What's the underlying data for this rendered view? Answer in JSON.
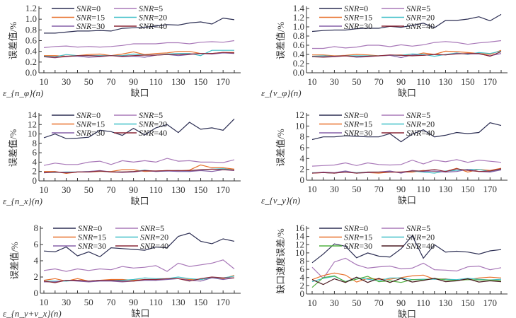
{
  "chart_data": [
    {
      "type": "line",
      "xlabel": "缺口",
      "ylabel": "误差值/%",
      "corner_label": "ε_{n_φ}(n)",
      "ylim": [
        0,
        1.2
      ],
      "yticks": [
        0,
        0.2,
        0.4,
        0.6,
        0.8,
        1.0,
        1.2
      ],
      "yticks_decimals": 1,
      "x": [
        10,
        20,
        30,
        40,
        50,
        60,
        70,
        80,
        90,
        100,
        110,
        120,
        130,
        140,
        150,
        160,
        170,
        180
      ],
      "xticks": [
        10,
        30,
        50,
        70,
        90,
        110,
        130,
        150,
        170
      ],
      "series": [
        {
          "name": "SNR=0",
          "color": "#2b2d52",
          "values": [
            0.74,
            0.74,
            0.76,
            0.78,
            0.78,
            0.79,
            0.78,
            0.83,
            0.84,
            0.85,
            0.87,
            0.9,
            0.89,
            0.93,
            0.95,
            0.91,
            1.02,
            0.99
          ]
        },
        {
          "name": "SNR=5",
          "color": "#a878b8",
          "values": [
            0.47,
            0.49,
            0.5,
            0.48,
            0.49,
            0.48,
            0.49,
            0.51,
            0.54,
            0.54,
            0.54,
            0.56,
            0.56,
            0.54,
            0.57,
            0.58,
            0.57,
            0.6
          ]
        },
        {
          "name": "SNR=15",
          "color": "#e8702a",
          "values": [
            0.32,
            0.32,
            0.31,
            0.32,
            0.34,
            0.35,
            0.32,
            0.35,
            0.39,
            0.34,
            0.36,
            0.37,
            0.4,
            0.4,
            0.36,
            0.36,
            0.38,
            0.38
          ]
        },
        {
          "name": "SNR=20",
          "color": "#40c0c8",
          "values": [
            0.31,
            0.3,
            0.34,
            0.32,
            0.32,
            0.32,
            0.32,
            0.32,
            0.35,
            0.33,
            0.33,
            0.35,
            0.36,
            0.36,
            0.32,
            0.42,
            0.42,
            0.42
          ]
        },
        {
          "name": "SNR=30",
          "color": "#8560a8",
          "values": [
            0.3,
            0.28,
            0.31,
            0.31,
            0.29,
            0.3,
            0.32,
            0.3,
            0.31,
            0.29,
            0.33,
            0.34,
            0.32,
            0.34,
            0.36,
            0.35,
            0.37,
            0.36
          ]
        },
        {
          "name": "SNR=40",
          "color": "#8a2838",
          "values": [
            0.3,
            0.29,
            0.3,
            0.32,
            0.32,
            0.31,
            0.32,
            0.31,
            0.32,
            0.33,
            0.33,
            0.34,
            0.34,
            0.35,
            0.36,
            0.36,
            0.38,
            0.37
          ]
        }
      ]
    },
    {
      "type": "line",
      "xlabel": "缺口",
      "ylabel": "误差值/%",
      "corner_label": "ε_{v_φ}(n)",
      "ylim": [
        0,
        1.4
      ],
      "yticks": [
        0,
        0.2,
        0.4,
        0.6,
        0.8,
        1.0,
        1.2,
        1.4
      ],
      "yticks_decimals": 1,
      "x": [
        10,
        20,
        30,
        40,
        50,
        60,
        70,
        80,
        90,
        100,
        110,
        120,
        130,
        140,
        150,
        160,
        170,
        180
      ],
      "xticks": [
        10,
        30,
        50,
        70,
        90,
        110,
        130,
        150,
        170
      ],
      "series": [
        {
          "name": "SNR=0",
          "color": "#2b2d52",
          "values": [
            0.9,
            0.92,
            0.93,
            0.93,
            0.96,
            0.97,
            0.97,
            1.01,
            0.99,
            1.03,
            1.08,
            0.98,
            1.14,
            1.14,
            1.17,
            1.22,
            1.13,
            1.27
          ]
        },
        {
          "name": "SNR=5",
          "color": "#a878b8",
          "values": [
            0.53,
            0.53,
            0.57,
            0.54,
            0.56,
            0.6,
            0.6,
            0.57,
            0.61,
            0.58,
            0.61,
            0.66,
            0.68,
            0.66,
            0.62,
            0.65,
            0.67,
            0.7
          ]
        },
        {
          "name": "SNR=15",
          "color": "#e8702a",
          "values": [
            0.39,
            0.39,
            0.37,
            0.38,
            0.4,
            0.39,
            0.37,
            0.38,
            0.39,
            0.38,
            0.43,
            0.4,
            0.47,
            0.46,
            0.44,
            0.42,
            0.4,
            0.49
          ]
        },
        {
          "name": "SNR=20",
          "color": "#40c0c8",
          "values": [
            0.36,
            0.37,
            0.36,
            0.37,
            0.37,
            0.37,
            0.37,
            0.38,
            0.38,
            0.41,
            0.4,
            0.36,
            0.4,
            0.43,
            0.4,
            0.44,
            0.42,
            0.47
          ]
        },
        {
          "name": "SNR=30",
          "color": "#8560a8",
          "values": [
            0.35,
            0.35,
            0.36,
            0.37,
            0.34,
            0.35,
            0.37,
            0.38,
            0.33,
            0.39,
            0.38,
            0.4,
            0.39,
            0.42,
            0.41,
            0.41,
            0.37,
            0.42
          ]
        },
        {
          "name": "SNR=40",
          "color": "#8a2838",
          "values": [
            0.35,
            0.34,
            0.35,
            0.37,
            0.35,
            0.36,
            0.37,
            0.39,
            0.38,
            0.37,
            0.38,
            0.4,
            0.39,
            0.41,
            0.42,
            0.42,
            0.36,
            0.46
          ]
        }
      ]
    },
    {
      "type": "line",
      "xlabel": "缺口",
      "ylabel": "误差值/%",
      "corner_label": "ε_{n_x}(n)",
      "ylim": [
        0,
        14
      ],
      "yticks": [
        0,
        2,
        4,
        6,
        8,
        10,
        12,
        14
      ],
      "yticks_decimals": 0,
      "x": [
        10,
        20,
        30,
        40,
        50,
        60,
        70,
        80,
        90,
        100,
        110,
        120,
        130,
        140,
        150,
        160,
        170,
        180
      ],
      "xticks": [
        10,
        30,
        50,
        70,
        90,
        110,
        130,
        150,
        170
      ],
      "series": [
        {
          "name": "SNR=0",
          "color": "#2b2d52",
          "values": [
            9.2,
            10.0,
            9.0,
            9.1,
            9.3,
            10.8,
            10.5,
            9.7,
            11.2,
            9.8,
            11.3,
            12.0,
            10.3,
            12.5,
            11.0,
            11.3,
            10.8,
            13.2
          ]
        },
        {
          "name": "SNR=5",
          "color": "#a878b8",
          "values": [
            3.3,
            3.8,
            3.5,
            3.5,
            4.0,
            4.2,
            3.5,
            4.3,
            4.0,
            4.3,
            4.0,
            4.8,
            4.2,
            4.3,
            4.0,
            4.0,
            3.9,
            4.5
          ]
        },
        {
          "name": "SNR=15",
          "color": "#e8702a",
          "values": [
            2.0,
            2.0,
            1.6,
            1.9,
            1.9,
            2.0,
            2.0,
            2.4,
            2.4,
            2.0,
            2.1,
            2.2,
            2.1,
            2.3,
            3.4,
            2.8,
            2.8,
            2.5
          ]
        },
        {
          "name": "SNR=20",
          "color": "#40c0c8",
          "values": [
            1.8,
            1.8,
            1.9,
            1.9,
            2.0,
            2.1,
            1.9,
            1.9,
            2.0,
            2.3,
            2.0,
            2.1,
            2.2,
            2.0,
            2.3,
            2.5,
            2.6,
            2.3
          ]
        },
        {
          "name": "SNR=30",
          "color": "#8560a8",
          "values": [
            1.7,
            1.9,
            1.8,
            1.9,
            2.0,
            2.2,
            1.9,
            1.8,
            1.9,
            2.2,
            2.0,
            2.1,
            2.0,
            2.0,
            2.2,
            2.0,
            2.4,
            2.2
          ]
        },
        {
          "name": "SNR=40",
          "color": "#8a2838",
          "values": [
            1.8,
            1.9,
            1.7,
            1.9,
            1.9,
            2.1,
            1.9,
            1.9,
            2.0,
            2.2,
            2.1,
            2.2,
            2.2,
            2.2,
            2.4,
            2.5,
            2.4,
            2.3
          ]
        }
      ]
    },
    {
      "type": "line",
      "xlabel": "缺口",
      "ylabel": "误差值/%",
      "corner_label": "ε_{v_y}(n)",
      "ylim": [
        0,
        12
      ],
      "yticks": [
        0,
        2,
        4,
        6,
        8,
        10,
        12
      ],
      "yticks_decimals": 0,
      "x": [
        10,
        20,
        30,
        40,
        50,
        60,
        70,
        80,
        90,
        100,
        110,
        120,
        130,
        140,
        150,
        160,
        170,
        180
      ],
      "xticks": [
        10,
        30,
        50,
        70,
        90,
        110,
        130,
        150,
        170
      ],
      "series": [
        {
          "name": "SNR=0",
          "color": "#2b2d52",
          "values": [
            7.5,
            8.0,
            8.0,
            8.2,
            8.1,
            8.0,
            8.0,
            8.6,
            7.1,
            8.5,
            9.3,
            8.0,
            8.3,
            8.8,
            8.6,
            8.8,
            10.6,
            10.1
          ]
        },
        {
          "name": "SNR=5",
          "color": "#a878b8",
          "values": [
            2.6,
            2.7,
            2.8,
            3.2,
            2.7,
            3.2,
            2.9,
            2.8,
            2.9,
            3.7,
            3.0,
            3.7,
            3.4,
            3.8,
            3.3,
            3.7,
            3.5,
            3.3
          ]
        },
        {
          "name": "SNR=15",
          "color": "#e8702a",
          "values": [
            1.3,
            1.4,
            1.3,
            1.6,
            1.3,
            1.4,
            1.3,
            1.5,
            1.5,
            1.5,
            1.8,
            1.6,
            1.6,
            2.2,
            1.5,
            2.0,
            1.8,
            2.2
          ]
        },
        {
          "name": "SNR=20",
          "color": "#40c0c8",
          "values": [
            1.4,
            1.4,
            1.3,
            1.6,
            1.4,
            1.5,
            1.5,
            1.6,
            1.4,
            1.7,
            1.5,
            1.3,
            1.7,
            1.8,
            2.0,
            2.0,
            1.6,
            2.0
          ]
        },
        {
          "name": "SNR=30",
          "color": "#8560a8",
          "values": [
            1.3,
            1.5,
            1.4,
            1.7,
            1.3,
            1.4,
            1.5,
            1.7,
            1.3,
            1.8,
            1.6,
            1.7,
            1.5,
            1.6,
            2.0,
            1.6,
            1.5,
            1.9
          ]
        },
        {
          "name": "SNR=40",
          "color": "#8a2838",
          "values": [
            1.3,
            1.4,
            1.3,
            1.5,
            1.3,
            1.5,
            1.5,
            1.5,
            1.5,
            1.7,
            1.7,
            2.0,
            1.6,
            2.1,
            1.8,
            1.6,
            1.7,
            2.1
          ]
        }
      ]
    },
    {
      "type": "line",
      "xlabel": "缺口",
      "ylabel": "误差值/%",
      "corner_label": "ε_{n_y+v_x}(n)",
      "ylim": [
        0,
        8
      ],
      "yticks": [
        0,
        2,
        4,
        6,
        8
      ],
      "yticks_decimals": 0,
      "x": [
        10,
        20,
        30,
        40,
        50,
        60,
        70,
        80,
        90,
        100,
        110,
        120,
        130,
        140,
        150,
        160,
        170,
        180
      ],
      "xticks": [
        10,
        30,
        50,
        70,
        90,
        110,
        130,
        150,
        170
      ],
      "series": [
        {
          "name": "SNR=0",
          "color": "#2b2d52",
          "values": [
            5.2,
            5.1,
            5.7,
            4.6,
            5.1,
            4.5,
            5.6,
            5.5,
            5.4,
            5.3,
            5.7,
            5.6,
            7.0,
            7.4,
            6.4,
            6.1,
            6.7,
            6.4
          ]
        },
        {
          "name": "SNR=5",
          "color": "#a878b8",
          "values": [
            2.8,
            3.0,
            2.7,
            3.0,
            2.8,
            3.0,
            2.9,
            3.3,
            3.1,
            3.2,
            3.4,
            2.7,
            3.7,
            3.3,
            3.5,
            3.7,
            4.1,
            3.0
          ]
        },
        {
          "name": "SNR=15",
          "color": "#e8702a",
          "values": [
            1.6,
            1.8,
            1.5,
            1.8,
            1.5,
            1.6,
            1.7,
            1.7,
            1.6,
            1.7,
            1.6,
            1.8,
            1.8,
            1.7,
            1.7,
            1.9,
            1.8,
            2.2
          ]
        },
        {
          "name": "SNR=20",
          "color": "#40c0c8",
          "values": [
            1.5,
            1.5,
            1.5,
            1.6,
            1.5,
            1.6,
            1.6,
            1.6,
            1.7,
            1.9,
            1.8,
            1.8,
            2.0,
            1.8,
            1.7,
            1.9,
            1.9,
            2.1
          ]
        },
        {
          "name": "SNR=30",
          "color": "#8560a8",
          "values": [
            1.4,
            1.4,
            1.6,
            1.5,
            1.4,
            1.5,
            1.5,
            1.4,
            1.5,
            1.6,
            1.6,
            1.7,
            1.8,
            1.6,
            1.5,
            1.9,
            1.7,
            1.9
          ]
        },
        {
          "name": "SNR=40",
          "color": "#8a2838",
          "values": [
            1.5,
            1.3,
            1.6,
            1.6,
            1.5,
            1.6,
            1.6,
            1.5,
            1.5,
            1.7,
            1.7,
            1.8,
            1.8,
            1.5,
            1.8,
            2.0,
            1.9,
            1.9
          ]
        }
      ]
    },
    {
      "type": "line",
      "xlabel": "缺口",
      "ylabel": "缺口速度误差/%",
      "corner_label": "",
      "ylim": [
        0,
        16
      ],
      "yticks": [
        0,
        2,
        4,
        6,
        8,
        10,
        12,
        14,
        16
      ],
      "yticks_decimals": 0,
      "x": [
        10,
        20,
        30,
        40,
        50,
        60,
        70,
        80,
        90,
        100,
        110,
        120,
        130,
        140,
        150,
        160,
        170,
        180
      ],
      "xticks": [
        10,
        30,
        50,
        70,
        90,
        110,
        130,
        150,
        170
      ],
      "series": [
        {
          "name": "SNR=0",
          "color": "#2b2d52",
          "values": [
            7.6,
            9.7,
            12.2,
            11.6,
            8.8,
            10.0,
            9.2,
            9.0,
            11.0,
            14.2,
            8.7,
            12.0,
            10.2,
            10.4,
            10.2,
            9.7,
            10.5,
            10.8
          ]
        },
        {
          "name": "SNR=5",
          "color": "#a878b8",
          "values": [
            6.5,
            3.8,
            7.8,
            8.7,
            7.1,
            6.3,
            6.6,
            6.8,
            6.1,
            6.3,
            7.5,
            5.9,
            5.8,
            5.6,
            6.6,
            6.8,
            5.9,
            6.4
          ]
        },
        {
          "name": "SNR=15",
          "color": "#e8702a",
          "values": [
            3.5,
            4.5,
            5.1,
            4.6,
            2.9,
            3.8,
            3.6,
            3.6,
            4.0,
            4.4,
            4.6,
            3.6,
            3.7,
            3.3,
            3.5,
            3.9,
            4.1,
            3.9
          ]
        },
        {
          "name": "SNR=20",
          "color": "#40c0c8",
          "values": [
            3.0,
            3.8,
            4.3,
            3.0,
            4.0,
            3.6,
            3.2,
            3.9,
            3.9,
            3.5,
            3.6,
            3.6,
            3.6,
            3.5,
            3.8,
            3.6,
            3.4,
            3.6
          ]
        },
        {
          "name": "SNR=30",
          "color": "#50b040",
          "values": [
            1.6,
            4.0,
            4.4,
            3.0,
            3.6,
            4.3,
            3.0,
            3.2,
            2.8,
            3.5,
            3.4,
            3.8,
            3.4,
            3.3,
            3.5,
            3.4,
            3.4,
            3.3
          ]
        },
        {
          "name": "SNR=40",
          "color": "#4a1a20",
          "values": [
            3.5,
            2.3,
            3.7,
            2.8,
            4.1,
            2.8,
            3.8,
            2.8,
            3.8,
            2.9,
            3.3,
            3.8,
            3.0,
            3.2,
            3.7,
            2.9,
            3.2,
            3.0
          ]
        }
      ]
    }
  ]
}
